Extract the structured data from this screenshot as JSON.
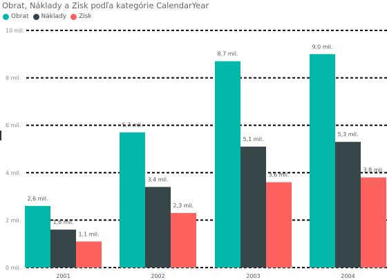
{
  "chart_data": {
    "type": "bar",
    "title": "Obrat, Náklady a Zisk podľa kategórie CalendarYear",
    "categories": [
      "2001",
      "2002",
      "2003",
      "2004"
    ],
    "series": [
      {
        "name": "Obrat",
        "color": "#01b8aa",
        "values": [
          2.6,
          5.7,
          8.7,
          9.0
        ],
        "labels": [
          "2,6 mil.",
          "5,7 mil.",
          "8,7 mil.",
          "9,0 mil."
        ]
      },
      {
        "name": "Náklady",
        "color": "#374649",
        "values": [
          1.6,
          3.4,
          5.1,
          5.3
        ],
        "labels": [
          "1,6 mil.",
          "3,4 mil.",
          "5,1 mil.",
          "5,3 mil."
        ]
      },
      {
        "name": "Zisk",
        "color": "#fd625e",
        "values": [
          1.1,
          2.3,
          3.6,
          3.8
        ],
        "labels": [
          "1,1 mil.",
          "2,3 mil.",
          "3,6 mil.",
          "3,8 mil."
        ]
      }
    ],
    "yticks": [
      {
        "value": 0,
        "label": "0 mil."
      },
      {
        "value": 2,
        "label": "2 mil."
      },
      {
        "value": 4,
        "label": "4 mil."
      },
      {
        "value": 6,
        "label": "6 mil."
      },
      {
        "value": 8,
        "label": "8 mil."
      },
      {
        "value": 10,
        "label": "10 mil."
      }
    ],
    "ylim": [
      0,
      10
    ],
    "grid": true,
    "legend_position": "top-left",
    "xlabel": "",
    "ylabel": ""
  }
}
